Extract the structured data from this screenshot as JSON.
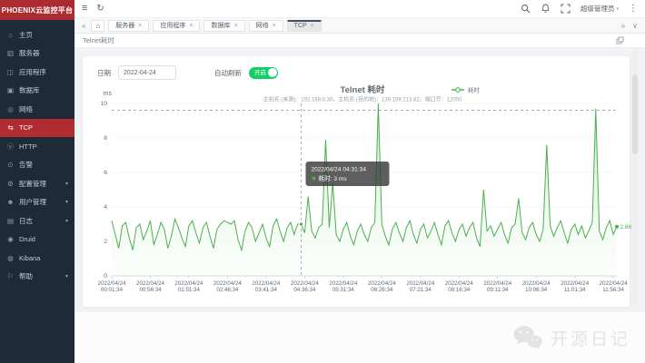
{
  "app": {
    "brand": "PHOENIX云监控平台"
  },
  "sidebar": {
    "items": [
      {
        "label": "主页",
        "icon": "home-icon",
        "glyph": "⌂"
      },
      {
        "label": "服务器",
        "icon": "server-icon",
        "glyph": "▥"
      },
      {
        "label": "应用程序",
        "icon": "app-icon",
        "glyph": "◫"
      },
      {
        "label": "数据库",
        "icon": "database-icon",
        "glyph": "▣"
      },
      {
        "label": "网络",
        "icon": "network-icon",
        "glyph": "◎"
      },
      {
        "label": "TCP",
        "icon": "tcp-icon",
        "glyph": "⇆",
        "active": true
      },
      {
        "label": "HTTP",
        "icon": "http-icon",
        "glyph": "ⓔ"
      },
      {
        "label": "告警",
        "icon": "alarm-icon",
        "glyph": "⊙"
      },
      {
        "label": "配置管理",
        "icon": "config-icon",
        "glyph": "⚙",
        "expandable": true
      },
      {
        "label": "用户管理",
        "icon": "user-icon",
        "glyph": "☻",
        "expandable": true
      },
      {
        "label": "日志",
        "icon": "log-icon",
        "glyph": "▤",
        "expandable": true
      },
      {
        "label": "Druid",
        "icon": "druid-icon",
        "glyph": "◉"
      },
      {
        "label": "Kibana",
        "icon": "kibana-icon",
        "glyph": "◍"
      },
      {
        "label": "帮助",
        "icon": "help-icon",
        "glyph": "⚐",
        "expandable": true
      }
    ],
    "expand_arrow": "▾"
  },
  "topbar": {
    "hamburger": "≡",
    "refresh": "↻",
    "user_label": "超级管理员",
    "user_caret": "▾",
    "more": "⋮"
  },
  "tabbar": {
    "collapse_left": "«",
    "home_glyph": "⌂",
    "tabs": [
      {
        "label": "服务器"
      },
      {
        "label": "应用程序"
      },
      {
        "label": "数据库"
      },
      {
        "label": "网络"
      },
      {
        "label": "TCP",
        "active": true
      }
    ],
    "close_glyph": "×",
    "overflow_right": "»",
    "overflow_down": "∨"
  },
  "panel": {
    "breadcrumb": "Telnet耗时",
    "date_label": "日期",
    "date_value": "2022-04-24",
    "auto_refresh_label": "自动刷新",
    "toggle_text": "开启"
  },
  "theme": {
    "sidebar_bg": "#1e2a38",
    "accent_red": "#b02c31",
    "toggle_green": "#13ce66",
    "series_green": "#4caf50"
  },
  "chart_data": {
    "type": "area",
    "title": "Telnet 耗时",
    "subtitle": "主机名 (来源)：192.168.0.30，主机名 (目的地)：139.159.213.82，端口号：12000",
    "legend": [
      "耗时"
    ],
    "legend_position": "top-right",
    "ylabel": "ms",
    "ylim": [
      0,
      10
    ],
    "yticks": [
      0,
      2,
      4,
      6,
      8,
      10
    ],
    "grid": true,
    "x_tick_date": "2022/04/24",
    "x_tick_times": [
      "00:01:34",
      "00:56:34",
      "01:51:34",
      "02:46:34",
      "03:41:34",
      "04:36:34",
      "05:31:34",
      "06:26:34",
      "07:21:34",
      "08:16:34",
      "09:11:34",
      "10:06:34",
      "11:01:34",
      "11:56:34"
    ],
    "x_tick_step": 11,
    "sample_interval_min": 5,
    "start_time": "00:01:34",
    "values": [
      3.2,
      2.4,
      1.6,
      2.9,
      3.1,
      2.2,
      1.5,
      2.8,
      3.0,
      2.1,
      2.6,
      3.2,
      1.8,
      2.4,
      3.1,
      2.7,
      1.6,
      2.3,
      3.3,
      2.8,
      2.2,
      1.7,
      2.9,
      3.2,
      2.5,
      1.9,
      2.8,
      3.1,
      2.3,
      1.6,
      2.7,
      3.0,
      3.2,
      3.1,
      3.0,
      3.2,
      2.1,
      1.5,
      2.6,
      3.1,
      2.8,
      2.0,
      2.5,
      3.0,
      2.2,
      1.7,
      2.9,
      3.3,
      2.6,
      2.0,
      2.8,
      3.1,
      2.4,
      3.0,
      3.0,
      2.5,
      4.6,
      2.6,
      2.2,
      2.8,
      3.0,
      7.9,
      2.8,
      5.4,
      2.4,
      2.0,
      2.7,
      3.1,
      2.3,
      1.8,
      2.6,
      3.0,
      2.4,
      2.0,
      2.8,
      3.1,
      10.0,
      3.0,
      2.3,
      1.8,
      2.7,
      3.1,
      2.5,
      2.0,
      2.8,
      3.2,
      2.4,
      1.9,
      2.7,
      3.0,
      2.2,
      2.6,
      3.1,
      2.4,
      1.8,
      2.9,
      3.2,
      2.5,
      2.0,
      2.7,
      3.0,
      2.3,
      2.8,
      3.1,
      2.2,
      1.7,
      5.0,
      2.6,
      2.9,
      2.3,
      2.7,
      3.1,
      2.4,
      1.9,
      2.8,
      3.0,
      4.5,
      2.5,
      2.1,
      2.8,
      3.1,
      2.4,
      2.0,
      2.7,
      7.6,
      2.9,
      2.3,
      2.8,
      3.2,
      2.5,
      1.9,
      2.7,
      3.0,
      2.4,
      2.9,
      2.2,
      2.6,
      3.1,
      9.7,
      2.6,
      2.1,
      2.8,
      3.2,
      2.4,
      2.86
    ],
    "tooltip_point": {
      "index": 54,
      "datetime": "2022/04/24 04:31:34",
      "series": "耗时",
      "value_text": "3 ms",
      "cross_y_value": 9.6
    },
    "last_value_label": "2.86",
    "colors": {
      "line": "#4caf50",
      "fill_top": "#7ed37f",
      "fill_bottom": "#eaf7ea"
    }
  },
  "watermark": {
    "text": "开源日记"
  }
}
